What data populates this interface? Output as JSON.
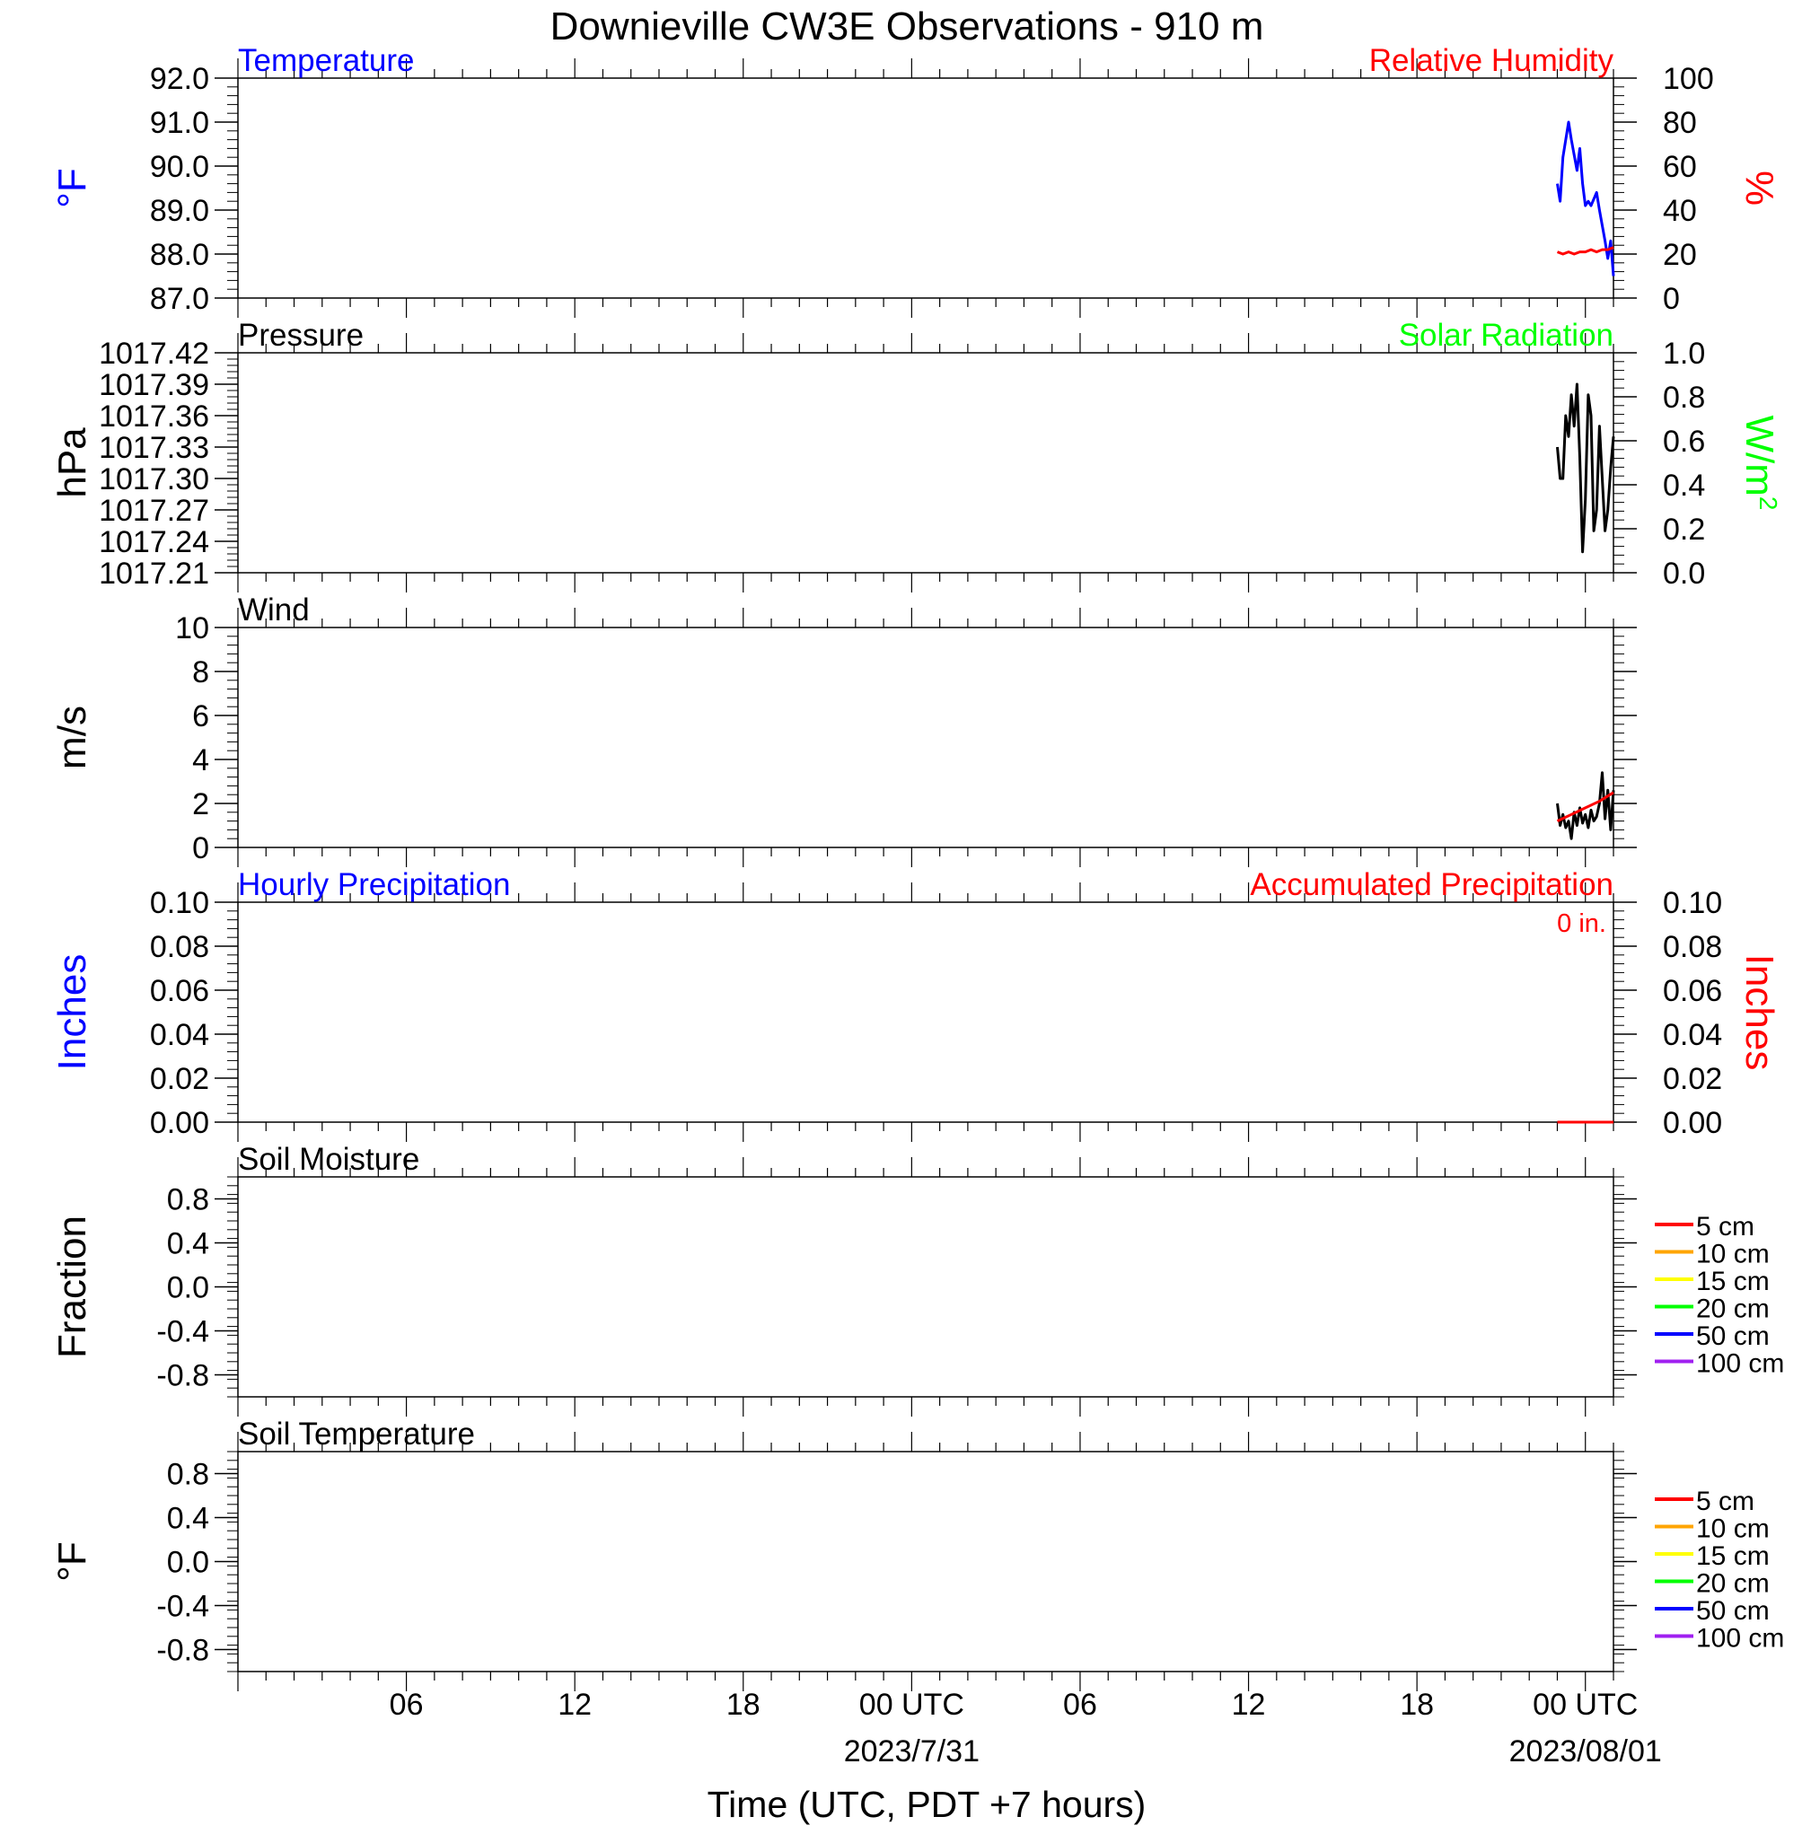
{
  "page": {
    "title": "Downieville CW3E Observations - 910 m",
    "x_axis_label": "Time (UTC, PDT +7 hours)",
    "x_ticks": [
      {
        "label": "06",
        "sublabel": ""
      },
      {
        "label": "12",
        "sublabel": ""
      },
      {
        "label": "18",
        "sublabel": ""
      },
      {
        "label": "00 UTC",
        "sublabel": "2023/7/31"
      },
      {
        "label": "06",
        "sublabel": ""
      },
      {
        "label": "12",
        "sublabel": ""
      },
      {
        "label": "18",
        "sublabel": ""
      },
      {
        "label": "00 UTC",
        "sublabel": "2023/08/01"
      }
    ]
  },
  "colors": {
    "temperature": "#0000ff",
    "humidity": "#ff0000",
    "pressure": "#000000",
    "solar": "#00ff00",
    "wind": "#000000",
    "wind_gust": "#ff0000",
    "hourly_precip": "#0000ff",
    "accum_precip": "#ff0000"
  },
  "chart_data": [
    {
      "id": "temp-rh",
      "type": "line",
      "title_left": "Temperature",
      "title_left_color": "#0000ff",
      "title_right": "Relative Humidity",
      "title_right_color": "#ff0000",
      "ylabel_left": "°F",
      "ylabel_left_color": "#0000ff",
      "ylabel_right": "%",
      "ylabel_right_color": "#ff0000",
      "ylim_left": [
        87,
        92
      ],
      "ylim_right": [
        0,
        100
      ],
      "yticks_left": [
        "87.0",
        "88.0",
        "89.0",
        "90.0",
        "91.0",
        "92.0"
      ],
      "yticks_right": [
        "0",
        "20",
        "40",
        "60",
        "80",
        "100"
      ],
      "x_unit": "hours since 2023-07-30 00 UTC",
      "series": [
        {
          "name": "Temperature",
          "axis": "left",
          "color": "#0000ff",
          "x": [
            47.0,
            47.1,
            47.2,
            47.4,
            47.5,
            47.7,
            47.8,
            47.9,
            48.0,
            48.1,
            48.2,
            48.4,
            48.5,
            48.7,
            48.8,
            48.9,
            49.0
          ],
          "y": [
            89.6,
            89.2,
            90.2,
            91.0,
            90.6,
            89.9,
            90.4,
            89.6,
            89.1,
            89.2,
            89.1,
            89.4,
            89.0,
            88.3,
            87.9,
            88.3,
            87.5
          ]
        },
        {
          "name": "Relative Humidity",
          "axis": "right",
          "color": "#ff0000",
          "x": [
            47.0,
            47.2,
            47.4,
            47.6,
            47.8,
            48.0,
            48.2,
            48.4,
            48.6,
            48.8,
            49.0
          ],
          "y": [
            21,
            20,
            21,
            20,
            21,
            21,
            22,
            21,
            22,
            22,
            23
          ]
        }
      ]
    },
    {
      "id": "pressure-solar",
      "type": "line",
      "title_left": "Pressure",
      "title_left_color": "#000000",
      "title_right": "Solar Radiation",
      "title_right_color": "#00ff00",
      "ylabel_left": "hPa",
      "ylabel_left_color": "#000000",
      "ylabel_right": "W/m",
      "ylabel_right_sup": "2",
      "ylabel_right_color": "#00ff00",
      "ylim_left": [
        1017.21,
        1017.42
      ],
      "ylim_right": [
        0,
        1
      ],
      "yticks_left": [
        "1017.21",
        "1017.24",
        "1017.27",
        "1017.30",
        "1017.33",
        "1017.36",
        "1017.39",
        "1017.42"
      ],
      "yticks_right": [
        "0.0",
        "0.2",
        "0.4",
        "0.6",
        "0.8",
        "1.0"
      ],
      "x_unit": "hours since 2023-07-30 00 UTC",
      "series": [
        {
          "name": "Pressure",
          "axis": "left",
          "color": "#000000",
          "x": [
            47.0,
            47.1,
            47.2,
            47.3,
            47.4,
            47.5,
            47.6,
            47.7,
            47.8,
            47.9,
            48.0,
            48.1,
            48.2,
            48.3,
            48.4,
            48.5,
            48.6,
            48.7,
            48.8,
            48.9,
            49.0
          ],
          "y": [
            1017.33,
            1017.3,
            1017.3,
            1017.36,
            1017.34,
            1017.38,
            1017.35,
            1017.39,
            1017.32,
            1017.23,
            1017.28,
            1017.38,
            1017.36,
            1017.25,
            1017.27,
            1017.35,
            1017.3,
            1017.25,
            1017.27,
            1017.31,
            1017.34
          ]
        }
      ]
    },
    {
      "id": "wind",
      "type": "line",
      "title_left": "Wind",
      "title_left_color": "#000000",
      "ylabel_left": "m/s",
      "ylabel_left_color": "#000000",
      "ylim_left": [
        0,
        10
      ],
      "yticks_left": [
        "0",
        "2",
        "4",
        "6",
        "8",
        "10"
      ],
      "x_unit": "hours since 2023-07-30 00 UTC",
      "series": [
        {
          "name": "Wind",
          "axis": "left",
          "color": "#000000",
          "x": [
            47.0,
            47.1,
            47.2,
            47.3,
            47.4,
            47.5,
            47.6,
            47.7,
            47.8,
            47.9,
            48.0,
            48.1,
            48.2,
            48.3,
            48.4,
            48.5,
            48.6,
            48.7,
            48.8,
            48.9,
            49.0
          ],
          "y": [
            2.0,
            1.0,
            1.5,
            0.9,
            1.2,
            0.4,
            1.6,
            1.0,
            1.8,
            1.1,
            1.5,
            0.9,
            1.7,
            1.2,
            1.4,
            2.0,
            3.4,
            1.3,
            2.6,
            0.8,
            2.6
          ]
        },
        {
          "name": "Gust",
          "axis": "left",
          "color": "#ff0000",
          "x": [
            47.0,
            47.5,
            48.0,
            48.5,
            49.0
          ],
          "y": [
            1.2,
            1.5,
            1.8,
            2.1,
            2.5
          ]
        }
      ]
    },
    {
      "id": "precip",
      "type": "line",
      "title_left": "Hourly Precipitation",
      "title_left_color": "#0000ff",
      "title_right": "Accumulated Precipitation",
      "title_right_color": "#ff0000",
      "annotation": "0 in.",
      "annotation_color": "#ff0000",
      "ylabel_left": "Inches",
      "ylabel_left_color": "#0000ff",
      "ylabel_right": "Inches",
      "ylabel_right_color": "#ff0000",
      "ylim_left": [
        0,
        0.1
      ],
      "ylim_right": [
        0,
        0.1
      ],
      "yticks_left": [
        "0.00",
        "0.02",
        "0.04",
        "0.06",
        "0.08",
        "0.10"
      ],
      "yticks_right": [
        "0.00",
        "0.02",
        "0.04",
        "0.06",
        "0.08",
        "0.10"
      ],
      "x_unit": "hours since 2023-07-30 00 UTC",
      "series": [
        {
          "name": "Accumulated Precipitation",
          "axis": "left",
          "color": "#ff0000",
          "x": [
            47.0,
            49.0
          ],
          "y": [
            0,
            0
          ]
        }
      ]
    },
    {
      "id": "soil-moisture",
      "type": "line",
      "title_left": "Soil Moisture",
      "title_left_color": "#000000",
      "ylabel_left": "Fraction",
      "ylabel_left_color": "#000000",
      "ylim_left": [
        -1,
        1
      ],
      "yticks_left": [
        "-0.8",
        "-0.4",
        "0.0",
        "0.4",
        "0.8"
      ],
      "legend": [
        {
          "label": "5 cm",
          "color": "#ff0000"
        },
        {
          "label": "10 cm",
          "color": "#ffa500"
        },
        {
          "label": "15 cm",
          "color": "#ffff00"
        },
        {
          "label": "20 cm",
          "color": "#00ff00"
        },
        {
          "label": "50 cm",
          "color": "#0000ff"
        },
        {
          "label": "100 cm",
          "color": "#a020f0"
        }
      ],
      "series": []
    },
    {
      "id": "soil-temperature",
      "type": "line",
      "title_left": "Soil Temperature",
      "title_left_color": "#000000",
      "ylabel_left": "°F",
      "ylabel_left_color": "#000000",
      "ylim_left": [
        -1,
        1
      ],
      "yticks_left": [
        "-0.8",
        "-0.4",
        "0.0",
        "0.4",
        "0.8"
      ],
      "legend": [
        {
          "label": "5 cm",
          "color": "#ff0000"
        },
        {
          "label": "10 cm",
          "color": "#ffa500"
        },
        {
          "label": "15 cm",
          "color": "#ffff00"
        },
        {
          "label": "20 cm",
          "color": "#00ff00"
        },
        {
          "label": "50 cm",
          "color": "#0000ff"
        },
        {
          "label": "100 cm",
          "color": "#a020f0"
        }
      ],
      "series": []
    }
  ]
}
